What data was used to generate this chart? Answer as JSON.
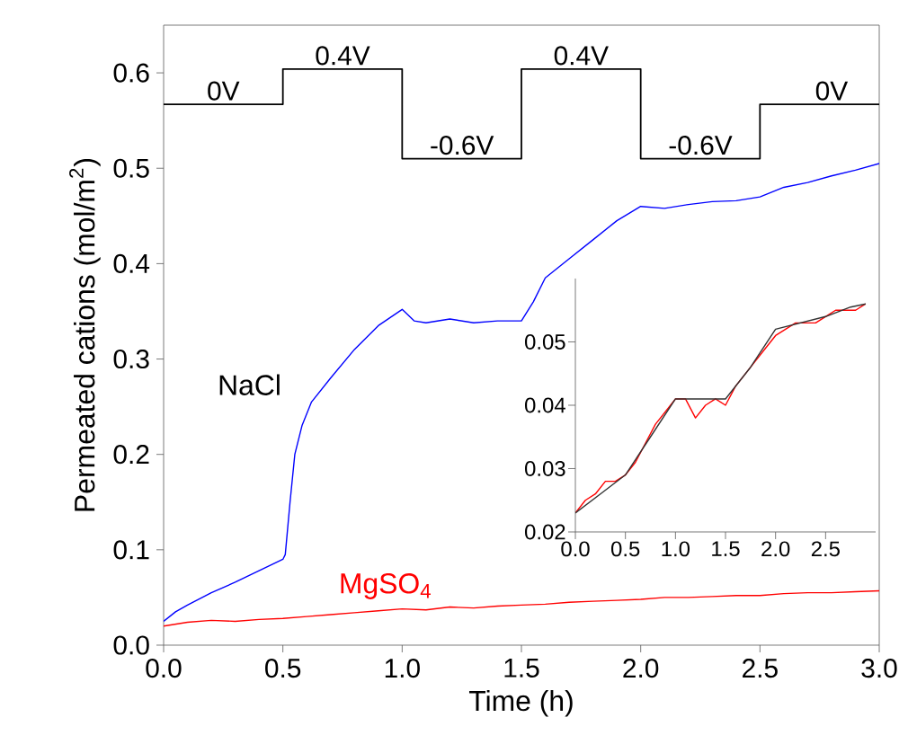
{
  "chart_data": [
    {
      "type": "line",
      "xlabel": "Time (h)",
      "ylabel": "Permeated cations (mol/m$^{2}$)",
      "xlim": [
        0,
        3
      ],
      "ylim": [
        0,
        0.65
      ],
      "xticks": [
        {
          "value": 0,
          "label": "0.0"
        },
        0.5,
        {
          "value": 1,
          "label": "1.0"
        },
        1.5,
        {
          "value": 2,
          "label": "2.0"
        },
        2.5,
        {
          "value": 3,
          "label": "3.0"
        }
      ],
      "yticks": [
        {
          "value": 0,
          "label": "0.0"
        },
        0.1,
        0.2,
        0.3,
        0.4,
        0.5,
        0.6
      ],
      "series": [
        {
          "type": "step",
          "color": "#000000",
          "x": [
            0,
            0.5,
            1.0,
            1.5,
            2.0,
            2.5,
            3.0
          ],
          "values": [
            0.567,
            0.604,
            0.51,
            0.604,
            0.51,
            0.567,
            0.567
          ]
        },
        {
          "name": "NaCl",
          "color": "#0000ff",
          "x": [
            0,
            0.05,
            0.1,
            0.2,
            0.3,
            0.4,
            0.5,
            0.51,
            0.53,
            0.55,
            0.58,
            0.62,
            0.7,
            0.8,
            0.9,
            1.0,
            1.05,
            1.1,
            1.2,
            1.3,
            1.4,
            1.5,
            1.55,
            1.6,
            1.7,
            1.8,
            1.9,
            2.0,
            2.1,
            2.2,
            2.3,
            2.4,
            2.5,
            2.6,
            2.7,
            2.8,
            2.9,
            3.0
          ],
          "values": [
            0.025,
            0.035,
            0.042,
            0.055,
            0.066,
            0.078,
            0.09,
            0.095,
            0.15,
            0.2,
            0.23,
            0.255,
            0.28,
            0.31,
            0.335,
            0.352,
            0.34,
            0.338,
            0.342,
            0.338,
            0.34,
            0.34,
            0.36,
            0.385,
            0.405,
            0.425,
            0.445,
            0.46,
            0.458,
            0.462,
            0.465,
            0.466,
            0.47,
            0.48,
            0.485,
            0.492,
            0.498,
            0.505
          ]
        },
        {
          "name": "MgSO$_{4}$",
          "color": "#ff0000",
          "x": [
            0,
            0.1,
            0.2,
            0.3,
            0.4,
            0.5,
            0.6,
            0.7,
            0.8,
            0.9,
            1.0,
            1.1,
            1.2,
            1.3,
            1.4,
            1.5,
            1.6,
            1.7,
            1.8,
            1.9,
            2.0,
            2.1,
            2.2,
            2.3,
            2.4,
            2.5,
            2.6,
            2.7,
            2.8,
            2.9,
            3.0
          ],
          "values": [
            0.02,
            0.024,
            0.026,
            0.025,
            0.027,
            0.028,
            0.03,
            0.032,
            0.034,
            0.036,
            0.038,
            0.037,
            0.04,
            0.039,
            0.041,
            0.042,
            0.043,
            0.045,
            0.046,
            0.047,
            0.048,
            0.05,
            0.05,
            0.051,
            0.052,
            0.052,
            0.054,
            0.055,
            0.055,
            0.056,
            0.057
          ]
        }
      ],
      "annotations": [
        {
          "text": "0V",
          "x": 0.25,
          "y": 0.567
        },
        {
          "text": "0.4V",
          "x": 0.75,
          "y": 0.604
        },
        {
          "text": "-0.6V",
          "x": 1.25,
          "y": 0.51
        },
        {
          "text": "0.4V",
          "x": 1.75,
          "y": 0.604
        },
        {
          "text": "-0.6V",
          "x": 2.25,
          "y": 0.51
        },
        {
          "text": "0V",
          "x": 2.8,
          "y": 0.567
        }
      ]
    },
    {
      "type": "line",
      "xlim": [
        0,
        3
      ],
      "ylim": [
        0.02,
        0.06
      ],
      "xticks": [
        {
          "value": 0,
          "label": "0.0"
        },
        0.5,
        {
          "value": 1,
          "label": "1.0"
        },
        1.5,
        {
          "value": 2,
          "label": "2.0"
        },
        2.5
      ],
      "yticks": [
        0.02,
        0.03,
        0.04,
        0.05
      ],
      "series": [
        {
          "color": "#ff0000",
          "x": [
            0,
            0.1,
            0.2,
            0.3,
            0.4,
            0.5,
            0.6,
            0.7,
            0.8,
            0.9,
            1.0,
            1.1,
            1.2,
            1.3,
            1.4,
            1.5,
            1.6,
            1.7,
            1.8,
            1.9,
            2.0,
            2.1,
            2.2,
            2.3,
            2.4,
            2.5,
            2.6,
            2.7,
            2.8,
            2.9
          ],
          "values": [
            0.023,
            0.025,
            0.026,
            0.028,
            0.028,
            0.029,
            0.031,
            0.034,
            0.037,
            0.039,
            0.041,
            0.041,
            0.038,
            0.04,
            0.041,
            0.04,
            0.043,
            0.045,
            0.047,
            0.049,
            0.051,
            0.052,
            0.053,
            0.053,
            0.053,
            0.054,
            0.055,
            0.055,
            0.055,
            0.056
          ]
        },
        {
          "color": "#333333",
          "x": [
            0,
            0.25,
            0.5,
            0.75,
            1.0,
            1.25,
            1.5,
            1.75,
            2.0,
            2.25,
            2.5,
            2.75,
            2.9
          ],
          "values": [
            0.023,
            0.026,
            0.029,
            0.035,
            0.041,
            0.041,
            0.041,
            0.046,
            0.052,
            0.053,
            0.054,
            0.0555,
            0.056
          ]
        }
      ]
    }
  ]
}
